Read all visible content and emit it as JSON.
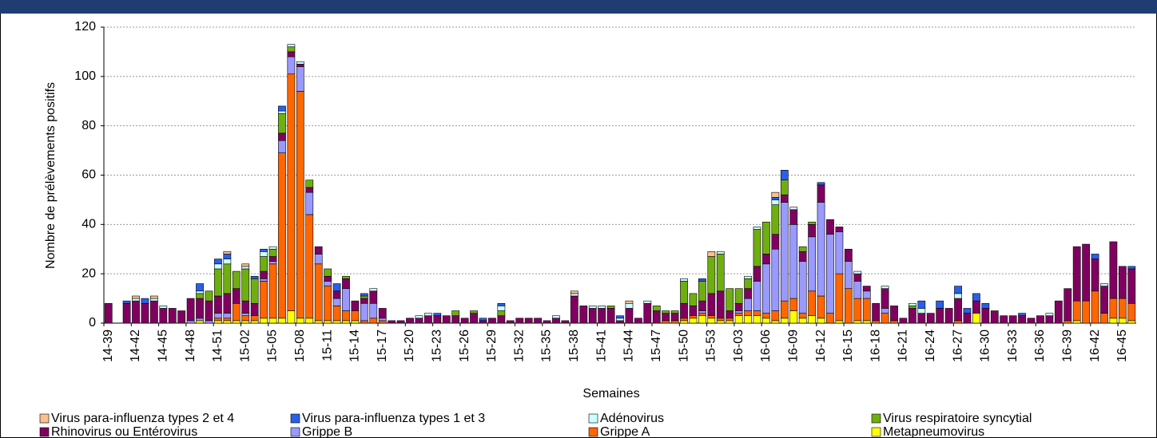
{
  "chart_data": {
    "type": "stacked_bar",
    "ylabel": "Nombre de prélèvements positifs",
    "xlabel": "Semaines",
    "categories": [
      "14-39",
      null,
      null,
      "14-42",
      null,
      null,
      "14-45",
      null,
      null,
      "14-48",
      null,
      null,
      "14-51",
      null,
      null,
      "15-02",
      null,
      null,
      "15-05",
      null,
      null,
      "15-08",
      null,
      null,
      "15-11",
      null,
      null,
      "15-14",
      null,
      null,
      "15-17",
      null,
      null,
      "15-20",
      null,
      null,
      "15-23",
      null,
      null,
      "15-26",
      null,
      null,
      "15-29",
      null,
      null,
      "15-32",
      null,
      null,
      "15-35",
      null,
      null,
      "15-38",
      null,
      null,
      "15-41",
      null,
      null,
      "15-44",
      null,
      null,
      "15-47",
      null,
      null,
      "15-50",
      null,
      null,
      "15-53",
      null,
      null,
      "16-03",
      null,
      null,
      "16-06",
      null,
      null,
      "16-09",
      null,
      null,
      "16-12",
      null,
      null,
      "16-15",
      null,
      null,
      "16-18",
      null,
      null,
      "16-21",
      null,
      null,
      "16-24",
      null,
      null,
      "16-27",
      null,
      null,
      "16-30",
      null,
      null,
      "16-33",
      null,
      null,
      "16-36",
      null,
      null,
      "16-39",
      null,
      null,
      "16-42",
      null,
      null,
      "16-45",
      null
    ],
    "series": [
      {
        "name": "Virus para-influenza types 2 et 4",
        "color": "#fac090",
        "values": [
          0,
          0,
          0,
          1,
          0,
          1,
          0,
          0,
          0,
          0,
          0,
          0,
          0,
          1,
          0,
          1,
          0,
          0,
          0,
          0,
          0,
          0,
          0,
          0,
          0,
          0,
          0,
          0,
          0,
          0,
          0,
          0,
          0,
          0,
          0,
          0,
          0,
          0,
          0,
          0,
          0,
          0,
          0,
          0,
          0,
          0,
          0,
          0,
          0,
          0,
          0,
          1,
          0,
          0,
          0,
          0,
          0,
          1,
          0,
          0,
          0,
          0,
          0,
          0,
          0,
          0,
          2,
          0,
          0,
          0,
          0,
          0,
          0,
          2,
          0,
          0,
          0,
          0,
          0,
          0,
          0,
          0,
          0,
          0,
          0,
          0,
          0,
          0,
          0,
          0,
          0,
          0,
          0,
          0,
          0,
          0,
          0,
          0,
          0,
          0,
          0,
          0,
          0,
          0,
          0,
          0,
          0,
          0,
          0,
          0,
          0,
          0,
          0
        ]
      },
      {
        "name": "Virus para-influenza types 1 et 3",
        "color": "#2a5fe8",
        "values": [
          0,
          0,
          1,
          0,
          2,
          0,
          0,
          0,
          0,
          0,
          3,
          0,
          2,
          2,
          0,
          0,
          1,
          1,
          0,
          2,
          0,
          0,
          0,
          0,
          0,
          3,
          0,
          0,
          1,
          0,
          0,
          0,
          0,
          0,
          0,
          0,
          1,
          0,
          0,
          0,
          0,
          1,
          0,
          1,
          0,
          0,
          0,
          0,
          0,
          0,
          0,
          0,
          0,
          0,
          0,
          0,
          1,
          0,
          0,
          0,
          0,
          0,
          0,
          0,
          0,
          1,
          0,
          0,
          0,
          0,
          0,
          0,
          0,
          1,
          4,
          0,
          0,
          0,
          1,
          0,
          0,
          0,
          0,
          0,
          0,
          0,
          0,
          0,
          0,
          3,
          0,
          3,
          0,
          3,
          2,
          3,
          2,
          0,
          0,
          0,
          1,
          0,
          0,
          0,
          0,
          0,
          0,
          0,
          2,
          0,
          0,
          0,
          1
        ]
      },
      {
        "name": "Adénovirus",
        "color": "#ccffff",
        "values": [
          0,
          0,
          0,
          1,
          0,
          1,
          1,
          0,
          0,
          0,
          1,
          0,
          2,
          2,
          0,
          1,
          0,
          2,
          1,
          1,
          1,
          1,
          0,
          0,
          0,
          0,
          0,
          0,
          0,
          1,
          0,
          0,
          0,
          0,
          1,
          1,
          0,
          0,
          0,
          0,
          0,
          0,
          0,
          2,
          0,
          0,
          0,
          0,
          0,
          1,
          0,
          1,
          0,
          1,
          1,
          0,
          1,
          2,
          0,
          1,
          0,
          0,
          0,
          1,
          0,
          0,
          0,
          1,
          0,
          0,
          1,
          1,
          0,
          2,
          0,
          1,
          0,
          0,
          0,
          0,
          0,
          0,
          1,
          0,
          0,
          1,
          0,
          0,
          1,
          2,
          0,
          0,
          0,
          2,
          0,
          0,
          0,
          0,
          0,
          0,
          0,
          0,
          0,
          1,
          0,
          0,
          0,
          0,
          0,
          1,
          0,
          0,
          0
        ]
      },
      {
        "name": "Virus respiratoire syncytial",
        "color": "#6fae10",
        "values": [
          0,
          0,
          0,
          0,
          0,
          0,
          0,
          0,
          0,
          0,
          2,
          4,
          11,
          12,
          7,
          13,
          10,
          6,
          3,
          8,
          2,
          0,
          3,
          0,
          3,
          0,
          1,
          0,
          1,
          0,
          0,
          0,
          0,
          0,
          0,
          0,
          0,
          0,
          2,
          0,
          1,
          0,
          0,
          2,
          0,
          0,
          0,
          0,
          0,
          0,
          0,
          0,
          0,
          0,
          0,
          1,
          0,
          0,
          0,
          0,
          2,
          1,
          1,
          9,
          5,
          8,
          15,
          15,
          9,
          6,
          4,
          15,
          13,
          12,
          6,
          0,
          2,
          1,
          0,
          0,
          0,
          0,
          0,
          0,
          0,
          0,
          0,
          0,
          1,
          0,
          0,
          0,
          0,
          0,
          0,
          0,
          0,
          0,
          0,
          0,
          0,
          0,
          0,
          0,
          0,
          0,
          0,
          0,
          0,
          0,
          0,
          0,
          0
        ]
      },
      {
        "name": "Rhinovirus ou Entérovirus",
        "color": "#800060",
        "values": [
          8,
          0,
          8,
          9,
          8,
          9,
          6,
          6,
          5,
          9,
          8,
          8,
          7,
          8,
          6,
          5,
          5,
          3,
          2,
          3,
          2,
          1,
          2,
          3,
          2,
          3,
          4,
          4,
          2,
          5,
          4,
          1,
          1,
          2,
          2,
          3,
          3,
          3,
          3,
          2,
          4,
          1,
          2,
          3,
          1,
          2,
          2,
          2,
          1,
          2,
          1,
          11,
          7,
          6,
          6,
          6,
          1,
          6,
          2,
          8,
          5,
          3,
          3,
          6,
          4,
          4,
          9,
          11,
          3,
          3,
          4,
          6,
          4,
          6,
          3,
          6,
          4,
          5,
          7,
          6,
          2,
          5,
          3,
          2,
          7,
          8,
          6,
          2,
          6,
          4,
          4,
          6,
          6,
          9,
          4,
          5,
          6,
          5,
          3,
          3,
          3,
          2,
          3,
          3,
          9,
          13,
          22,
          23,
          13,
          11,
          23,
          13,
          14
        ]
      },
      {
        "name": "Grippe B",
        "color": "#9999ff",
        "values": [
          0,
          0,
          0,
          0,
          0,
          0,
          0,
          0,
          0,
          1,
          1,
          1,
          2,
          2,
          0,
          1,
          0,
          1,
          1,
          5,
          7,
          10,
          9,
          4,
          2,
          3,
          9,
          0,
          7,
          6,
          1,
          0,
          0,
          0,
          0,
          0,
          0,
          0,
          0,
          0,
          0,
          0,
          0,
          0,
          0,
          0,
          0,
          0,
          0,
          0,
          0,
          0,
          0,
          0,
          0,
          0,
          0,
          0,
          0,
          0,
          0,
          0,
          0,
          0,
          0,
          1,
          0,
          0,
          0,
          1,
          5,
          12,
          20,
          25,
          40,
          30,
          21,
          22,
          38,
          32,
          17,
          11,
          7,
          3,
          0,
          2,
          0,
          0,
          0,
          0,
          0,
          0,
          0,
          0,
          0,
          0,
          0,
          0,
          0,
          0,
          0,
          0,
          0,
          0,
          0,
          0,
          0,
          0,
          0,
          0,
          0,
          0,
          0
        ]
      },
      {
        "name": "Grippe A",
        "color": "#ff6600",
        "values": [
          0,
          0,
          0,
          0,
          0,
          0,
          0,
          0,
          0,
          0,
          0,
          0,
          1,
          1,
          7,
          2,
          2,
          15,
          22,
          67,
          96,
          92,
          42,
          23,
          14,
          6,
          4,
          4,
          1,
          2,
          1,
          0,
          0,
          0,
          0,
          0,
          0,
          0,
          0,
          0,
          0,
          0,
          0,
          0,
          0,
          0,
          0,
          0,
          0,
          0,
          0,
          0,
          0,
          0,
          0,
          0,
          0,
          0,
          0,
          0,
          0,
          1,
          1,
          1,
          1,
          1,
          1,
          1,
          1,
          1,
          2,
          2,
          2,
          4,
          7,
          5,
          2,
          10,
          9,
          4,
          19,
          14,
          9,
          9,
          1,
          4,
          1,
          0,
          0,
          0,
          0,
          0,
          0,
          1,
          0,
          0,
          0,
          0,
          0,
          0,
          0,
          0,
          0,
          0,
          0,
          1,
          8,
          9,
          13,
          4,
          8,
          8,
          7
        ]
      },
      {
        "name": "Metapneumovirus",
        "color": "#ffff00",
        "values": [
          0,
          0,
          0,
          0,
          0,
          0,
          0,
          0,
          0,
          0,
          1,
          0,
          1,
          1,
          1,
          1,
          1,
          2,
          2,
          2,
          5,
          2,
          2,
          1,
          1,
          1,
          1,
          1,
          0,
          0,
          0,
          0,
          0,
          0,
          0,
          0,
          0,
          0,
          0,
          0,
          0,
          0,
          0,
          0,
          0,
          0,
          0,
          0,
          0,
          0,
          0,
          0,
          0,
          0,
          0,
          0,
          0,
          0,
          0,
          0,
          0,
          0,
          0,
          1,
          2,
          3,
          2,
          1,
          1,
          3,
          3,
          3,
          2,
          1,
          2,
          5,
          2,
          3,
          2,
          0,
          1,
          0,
          1,
          1,
          0,
          0,
          0,
          0,
          0,
          0,
          0,
          0,
          0,
          0,
          0,
          4,
          0,
          0,
          0,
          0,
          0,
          0,
          0,
          0,
          0,
          0,
          1,
          0,
          0,
          0,
          2,
          2,
          1
        ]
      }
    ],
    "ylim": [
      0,
      120
    ],
    "yticks": [
      0,
      20,
      40,
      60,
      80,
      100,
      120
    ],
    "grid": true
  }
}
